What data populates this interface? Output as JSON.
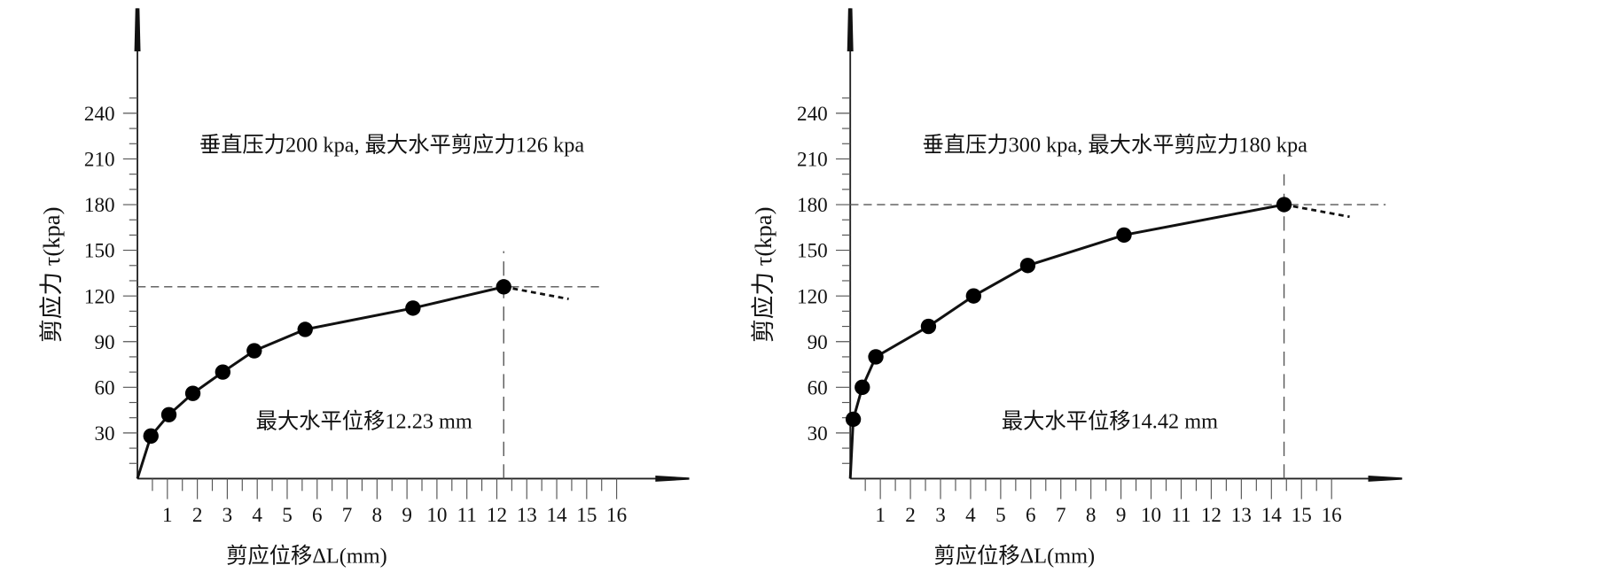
{
  "chart_data": [
    {
      "type": "line",
      "title": "垂直压力200 kpa, 最大水平剪应力126 kpa",
      "annotation": "最大水平位移12.23 mm",
      "xlabel": "剪应位移ΔL(mm)",
      "ylabel": "剪应力 τ(kpa)",
      "xlim": [
        0,
        16
      ],
      "ylim": [
        0,
        240
      ],
      "x_ticks": [
        "1",
        "2",
        "3",
        "4",
        "5",
        "6",
        "7",
        "8",
        "9",
        "10",
        "11",
        "12",
        "13",
        "14",
        "15",
        "16"
      ],
      "y_ticks": [
        "30",
        "60",
        "90",
        "120",
        "150",
        "180",
        "210",
        "240"
      ],
      "x": [
        0,
        0.45,
        1.05,
        1.85,
        2.85,
        3.9,
        5.6,
        9.2,
        12.23
      ],
      "y": [
        0,
        28,
        42,
        56,
        70,
        84,
        98,
        112,
        126
      ],
      "markers_from_index": 1,
      "peak": {
        "x": 12.23,
        "y": 126
      },
      "post_peak": {
        "x": [
          12.23,
          14.4
        ],
        "y": [
          126,
          118
        ]
      },
      "grid": false
    },
    {
      "type": "line",
      "title": "垂直压力300 kpa, 最大水平剪应力180 kpa",
      "annotation": "最大水平位移14.42 mm",
      "xlabel": "剪应位移ΔL(mm)",
      "ylabel": "剪应力 τ(kpa)",
      "xlim": [
        0,
        16
      ],
      "ylim": [
        0,
        240
      ],
      "x_ticks": [
        "1",
        "2",
        "3",
        "4",
        "5",
        "6",
        "7",
        "8",
        "9",
        "10",
        "11",
        "12",
        "13",
        "14",
        "15",
        "16"
      ],
      "y_ticks": [
        "30",
        "60",
        "90",
        "120",
        "150",
        "180",
        "210",
        "240"
      ],
      "x": [
        0,
        0.1,
        0.4,
        0.85,
        2.6,
        4.1,
        5.9,
        9.1,
        14.42
      ],
      "y": [
        0,
        39,
        60,
        80,
        100,
        120,
        140,
        160,
        180
      ],
      "markers_from_index": 1,
      "peak": {
        "x": 14.42,
        "y": 180
      },
      "post_peak": {
        "x": [
          14.42,
          16.6
        ],
        "y": [
          180,
          172
        ]
      },
      "grid": false
    }
  ]
}
